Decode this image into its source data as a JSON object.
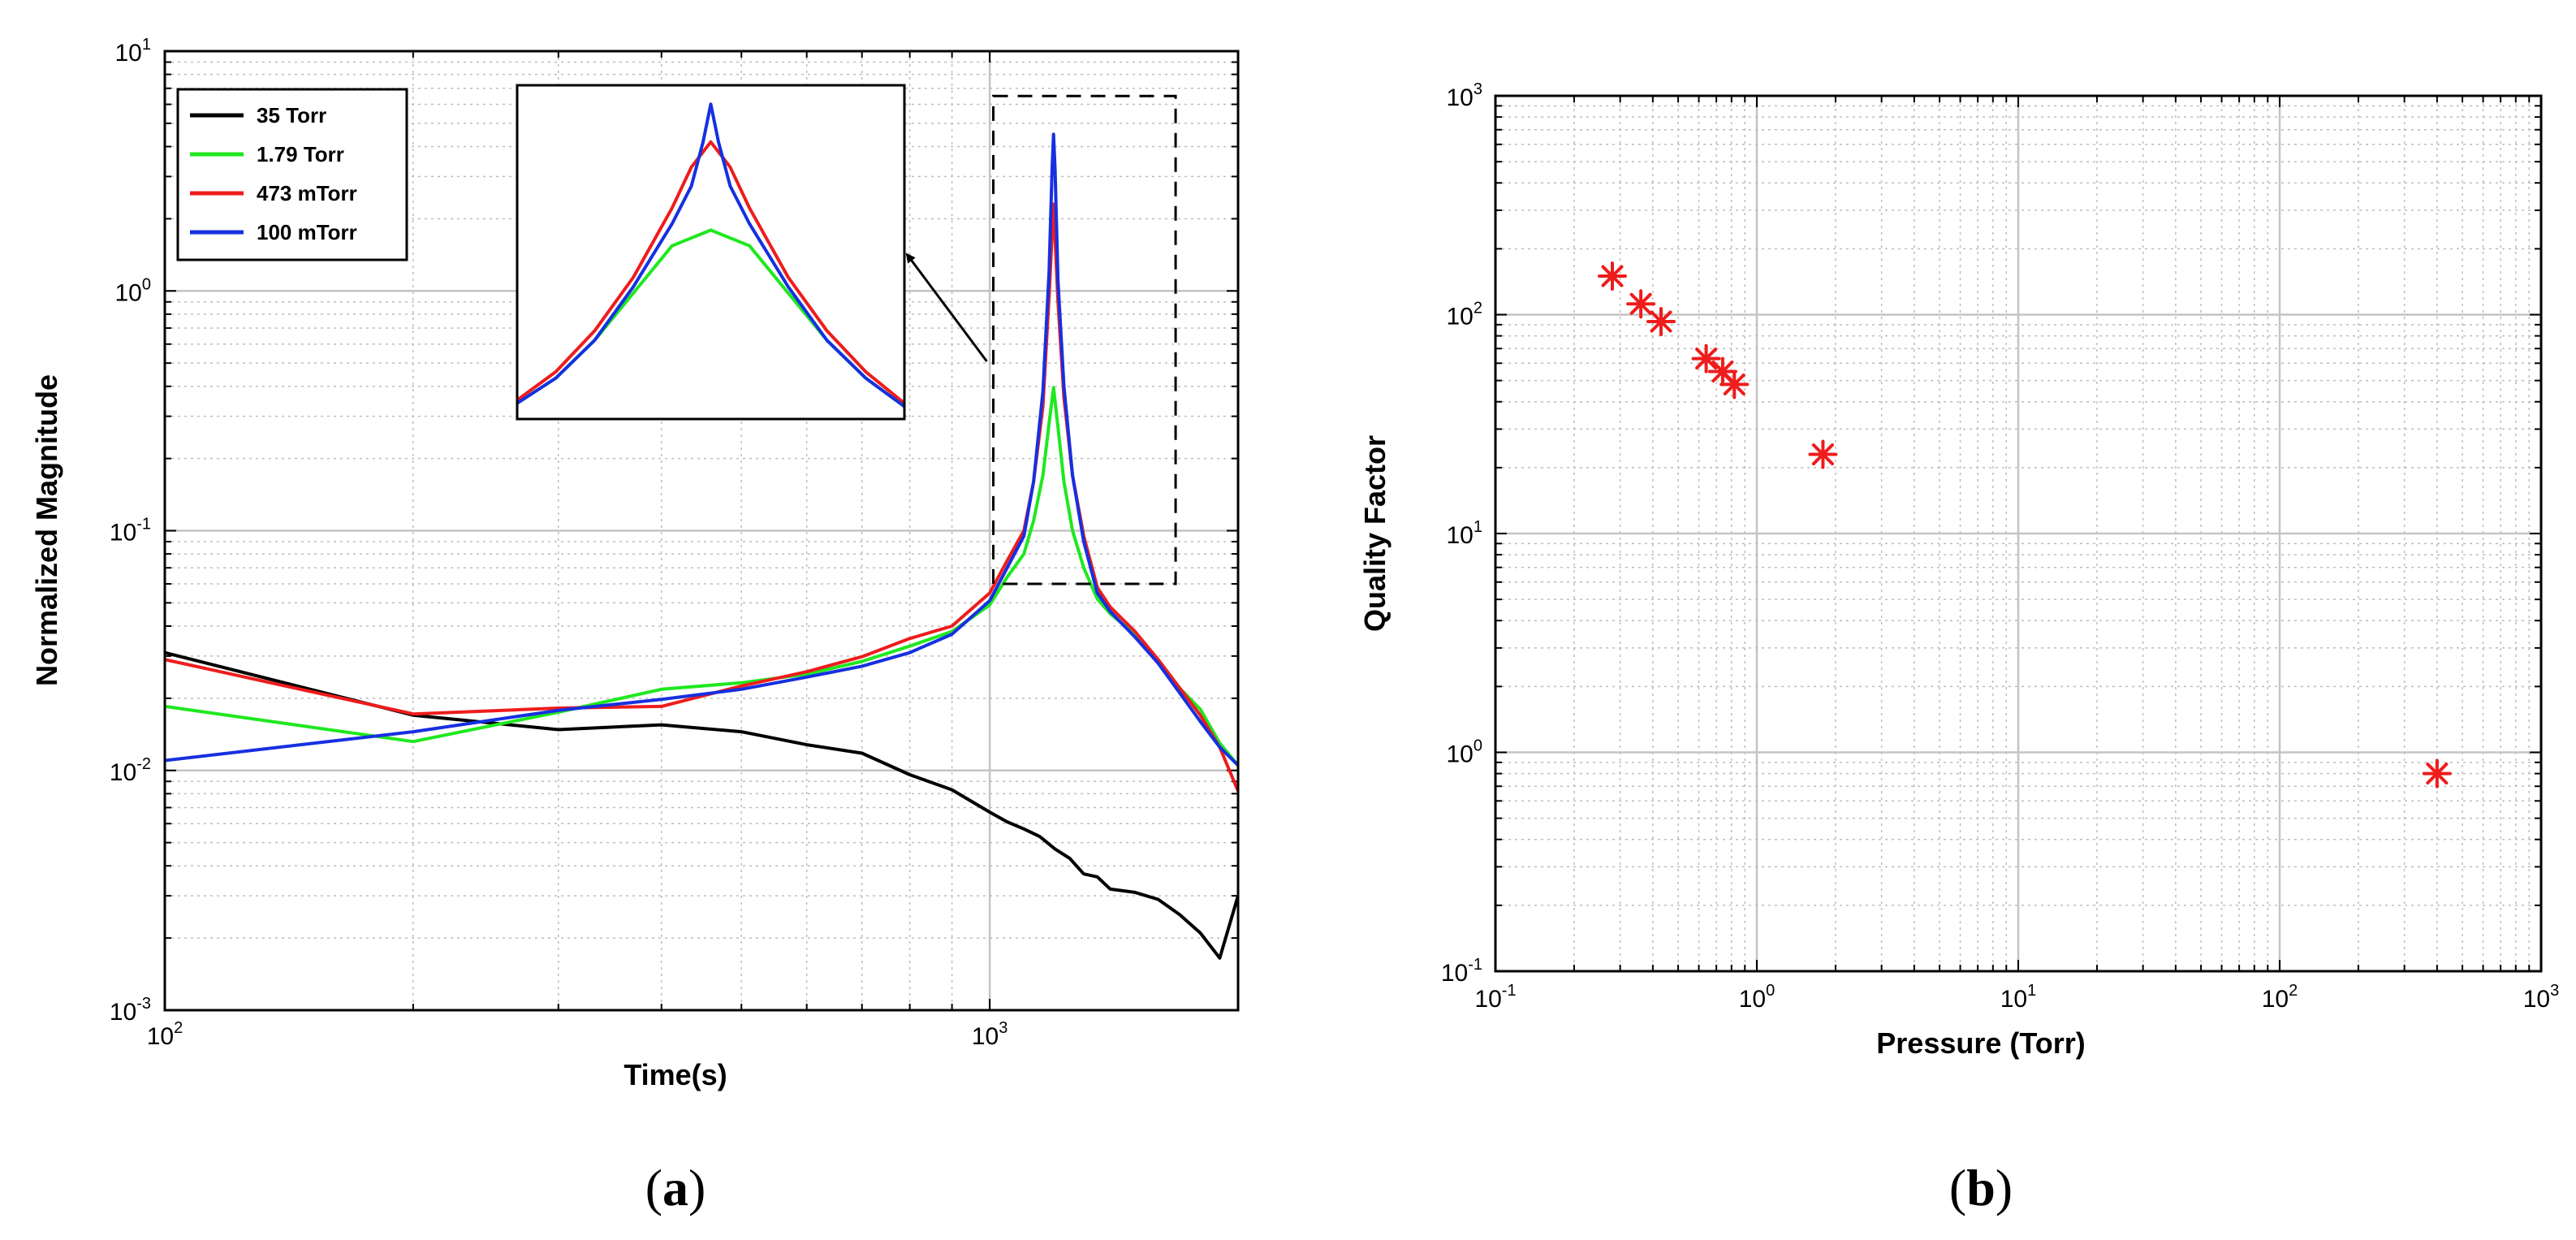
{
  "chart_data": [
    {
      "id": "a",
      "type": "line",
      "panel_label": "a",
      "xscale": "log",
      "yscale": "log",
      "xlabel": "Time(s)",
      "ylabel": "Normalized Magnitude",
      "xlim": [
        100,
        2000
      ],
      "ylim": [
        0.001,
        10
      ],
      "grid": true,
      "legend_position": "top-left",
      "x_ticks": [
        {
          "base": "10",
          "exp": "2"
        },
        {
          "base": "10",
          "exp": "3"
        }
      ],
      "y_ticks": [
        {
          "base": "10",
          "exp": "-3"
        },
        {
          "base": "10",
          "exp": "-2"
        },
        {
          "base": "10",
          "exp": "-1"
        },
        {
          "base": "10",
          "exp": "0"
        },
        {
          "base": "10",
          "exp": "1"
        }
      ],
      "series": [
        {
          "name": "35 Torr",
          "color": "#000000",
          "x": [
            100,
            200,
            300,
            400,
            500,
            600,
            700,
            800,
            900,
            1000,
            1050,
            1100,
            1150,
            1200,
            1250,
            1300,
            1350,
            1400,
            1500,
            1600,
            1700,
            1800,
            1900,
            2000
          ],
          "y": [
            0.031,
            0.017,
            0.0148,
            0.0155,
            0.0145,
            0.0128,
            0.0118,
            0.0096,
            0.0083,
            0.0067,
            0.0061,
            0.0057,
            0.0053,
            0.0047,
            0.0043,
            0.0037,
            0.0036,
            0.0032,
            0.0031,
            0.0029,
            0.0025,
            0.0021,
            0.00165,
            0.003
          ]
        },
        {
          "name": "1.79 Torr",
          "color": "#1fe81f",
          "x": [
            100,
            200,
            300,
            400,
            500,
            600,
            700,
            800,
            900,
            1000,
            1050,
            1100,
            1130,
            1160,
            1180,
            1195,
            1210,
            1230,
            1260,
            1300,
            1350,
            1400,
            1500,
            1600,
            1700,
            1800,
            1900,
            2000
          ],
          "y": [
            0.0185,
            0.0132,
            0.0175,
            0.0218,
            0.0232,
            0.0252,
            0.0285,
            0.033,
            0.038,
            0.049,
            0.064,
            0.08,
            0.11,
            0.17,
            0.28,
            0.395,
            0.27,
            0.16,
            0.1,
            0.07,
            0.052,
            0.045,
            0.037,
            0.029,
            0.022,
            0.018,
            0.013,
            0.0105
          ]
        },
        {
          "name": "473 mTorr",
          "color": "#ee1c1c",
          "x": [
            100,
            200,
            300,
            400,
            500,
            600,
            700,
            800,
            900,
            1000,
            1050,
            1100,
            1130,
            1160,
            1180,
            1195,
            1210,
            1230,
            1260,
            1300,
            1350,
            1400,
            1500,
            1600,
            1700,
            1800,
            1900,
            2000
          ],
          "y": [
            0.029,
            0.0172,
            0.0182,
            0.0185,
            0.0225,
            0.0258,
            0.0298,
            0.0355,
            0.04,
            0.055,
            0.075,
            0.1,
            0.16,
            0.33,
            0.95,
            2.3,
            0.9,
            0.36,
            0.17,
            0.095,
            0.058,
            0.048,
            0.038,
            0.029,
            0.022,
            0.017,
            0.0125,
            0.0082
          ]
        },
        {
          "name": "100 mTorr",
          "color": "#1630e0",
          "x": [
            100,
            200,
            300,
            400,
            500,
            600,
            700,
            800,
            900,
            1000,
            1050,
            1100,
            1130,
            1160,
            1180,
            1190,
            1195,
            1200,
            1210,
            1230,
            1260,
            1300,
            1350,
            1400,
            1500,
            1600,
            1700,
            1800,
            1900,
            2000
          ],
          "y": [
            0.011,
            0.0145,
            0.0178,
            0.0198,
            0.0218,
            0.0245,
            0.0272,
            0.031,
            0.037,
            0.051,
            0.07,
            0.095,
            0.16,
            0.38,
            1.2,
            3.2,
            4.5,
            3.2,
            1.1,
            0.4,
            0.17,
            0.09,
            0.055,
            0.046,
            0.036,
            0.028,
            0.021,
            0.016,
            0.0125,
            0.0105
          ]
        }
      ],
      "inset": {
        "zoom_box": {
          "x": [
            1010,
            1680
          ],
          "y": [
            0.06,
            6.5
          ]
        },
        "series": [
          {
            "name": "1.79 Torr",
            "color": "#1fe81f",
            "x": [
              0,
              0.1,
              0.2,
              0.3,
              0.4,
              0.5,
              0.6,
              0.7,
              0.8,
              0.9,
              1.0
            ],
            "y": [
              0.05,
              0.13,
              0.25,
              0.4,
              0.55,
              0.6,
              0.55,
              0.4,
              0.25,
              0.13,
              0.04
            ]
          },
          {
            "name": "473 mTorr",
            "color": "#ee1c1c",
            "x": [
              0,
              0.1,
              0.2,
              0.3,
              0.4,
              0.45,
              0.5,
              0.55,
              0.6,
              0.7,
              0.8,
              0.9,
              1.0
            ],
            "y": [
              0.06,
              0.15,
              0.28,
              0.45,
              0.67,
              0.8,
              0.88,
              0.8,
              0.67,
              0.45,
              0.28,
              0.15,
              0.05
            ]
          },
          {
            "name": "100 mTorr",
            "color": "#1630e0",
            "x": [
              0,
              0.1,
              0.2,
              0.3,
              0.4,
              0.45,
              0.48,
              0.5,
              0.52,
              0.55,
              0.6,
              0.7,
              0.8,
              0.9,
              1.0
            ],
            "y": [
              0.05,
              0.13,
              0.25,
              0.42,
              0.62,
              0.74,
              0.88,
              1.0,
              0.88,
              0.74,
              0.62,
              0.42,
              0.25,
              0.13,
              0.04
            ]
          }
        ]
      }
    },
    {
      "id": "b",
      "type": "scatter",
      "panel_label": "b",
      "xscale": "log",
      "yscale": "log",
      "xlabel": "Pressure (Torr)",
      "ylabel": "Quality Factor",
      "xlim": [
        0.1,
        1000
      ],
      "ylim": [
        0.1,
        1000
      ],
      "grid": true,
      "marker": "asterisk",
      "marker_color": "#ee1c1c",
      "x_ticks": [
        {
          "base": "10",
          "exp": "-1"
        },
        {
          "base": "10",
          "exp": "0"
        },
        {
          "base": "10",
          "exp": "1"
        },
        {
          "base": "10",
          "exp": "2"
        },
        {
          "base": "10",
          "exp": "3"
        }
      ],
      "y_ticks": [
        {
          "base": "10",
          "exp": "-1"
        },
        {
          "base": "10",
          "exp": "0"
        },
        {
          "base": "10",
          "exp": "1"
        },
        {
          "base": "10",
          "exp": "2"
        },
        {
          "base": "10",
          "exp": "3"
        }
      ],
      "points": [
        {
          "x": 0.28,
          "y": 150
        },
        {
          "x": 0.36,
          "y": 112
        },
        {
          "x": 0.43,
          "y": 93
        },
        {
          "x": 0.64,
          "y": 63
        },
        {
          "x": 0.74,
          "y": 55
        },
        {
          "x": 0.82,
          "y": 48
        },
        {
          "x": 1.79,
          "y": 23
        },
        {
          "x": 400,
          "y": 0.8
        }
      ]
    }
  ]
}
